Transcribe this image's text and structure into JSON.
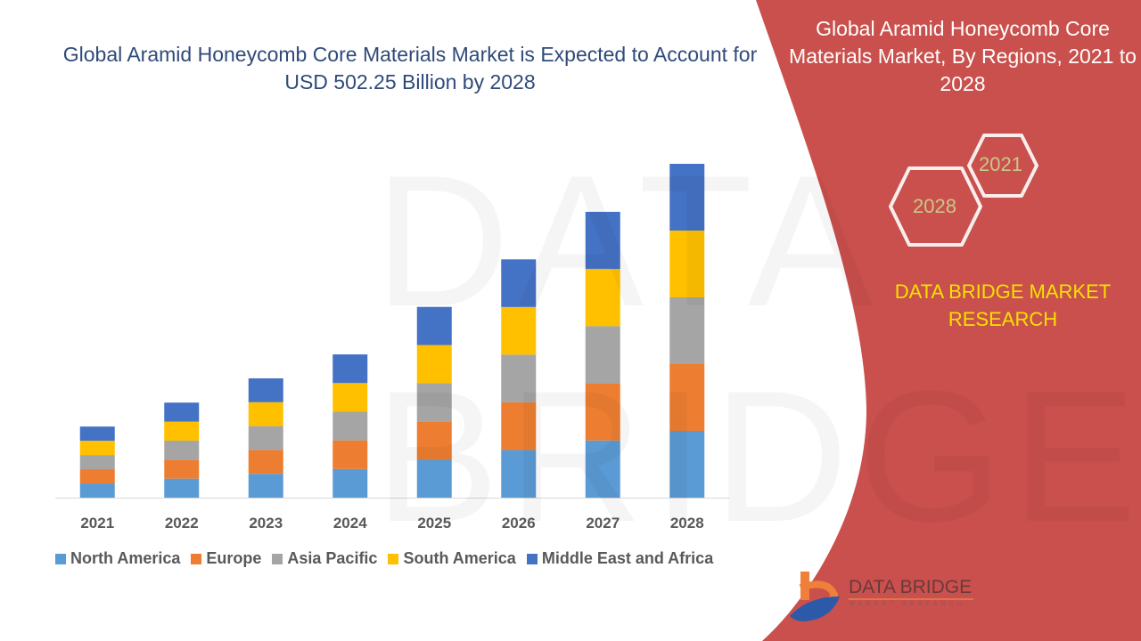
{
  "title": "Global Aramid Honeycomb Core Materials Market is Expected to Account for USD 502.25 Billion by 2028",
  "side_panel": {
    "title": "Global Aramid Honeycomb Core Materials Market, By Regions, 2021 to 2028",
    "hex_start": "2021",
    "hex_end": "2028",
    "brand": "DATA BRIDGE MARKET RESEARCH",
    "logo_text": "DATA BRIDGE",
    "logo_sub": "MARKET RESEARCH",
    "color": "#c9504c"
  },
  "watermark": "DATA BRIDGE",
  "chart_data": {
    "type": "bar",
    "stacked": true,
    "title": "Global Aramid Honeycomb Core Materials Market is Expected to Account for USD 502.25 Billion by 2028",
    "categories": [
      "2021",
      "2022",
      "2023",
      "2024",
      "2025",
      "2026",
      "2027",
      "2028"
    ],
    "series": [
      {
        "name": "North America",
        "color": "#5b9bd5",
        "values": [
          21.4,
          28.6,
          35.9,
          43.1,
          57.4,
          71.7,
          86.0,
          100.45
        ]
      },
      {
        "name": "Europe",
        "color": "#ed7d31",
        "values": [
          21.4,
          28.6,
          35.9,
          43.1,
          57.4,
          71.7,
          86.0,
          100.45
        ]
      },
      {
        "name": "Asia Pacific",
        "color": "#a5a5a5",
        "values": [
          21.4,
          28.6,
          35.9,
          43.1,
          57.4,
          71.7,
          86.0,
          100.45
        ]
      },
      {
        "name": "South America",
        "color": "#ffc000",
        "values": [
          21.4,
          28.6,
          35.9,
          43.1,
          57.4,
          71.7,
          86.0,
          100.45
        ]
      },
      {
        "name": "Middle East and Africa",
        "color": "#4472c4",
        "values": [
          21.4,
          28.6,
          35.9,
          43.1,
          57.4,
          71.7,
          86.0,
          100.45
        ]
      }
    ],
    "xlabel": "",
    "ylabel": "",
    "ylim": [
      0,
      502.25
    ],
    "grid": false,
    "legend": "bottom"
  }
}
